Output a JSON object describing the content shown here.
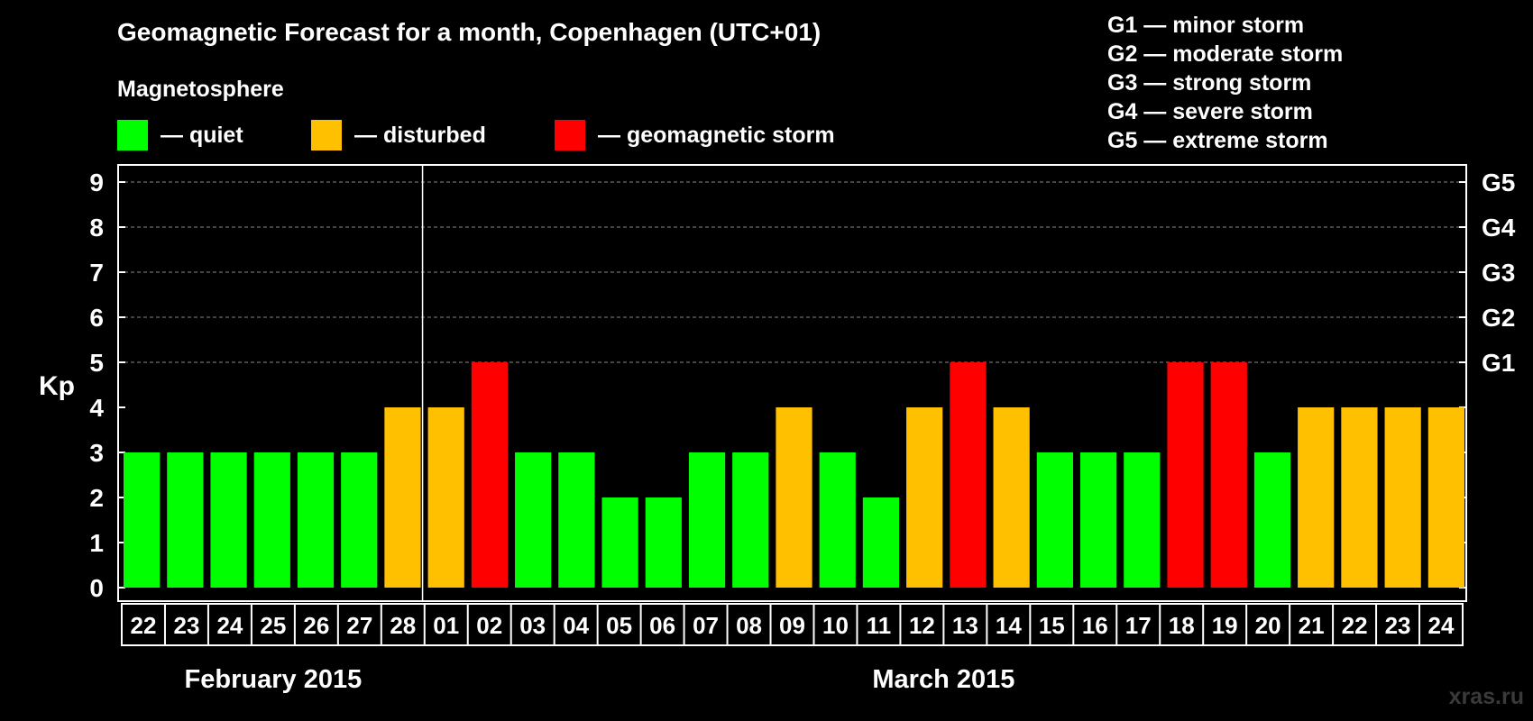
{
  "title": "Geomagnetic Forecast for a month, Copenhagen (UTC+01)",
  "magnetosphere_label": "Magnetosphere",
  "legend": [
    {
      "label": "— quiet",
      "color": "#00ff00"
    },
    {
      "label": "— disturbed",
      "color": "#ffc000"
    },
    {
      "label": "— geomagnetic storm",
      "color": "#ff0000"
    }
  ],
  "storm_levels": [
    "G1 — minor storm",
    "G2 — moderate storm",
    "G3 — strong storm",
    "G4 — severe storm",
    "G5 — extreme storm"
  ],
  "watermark": "xras.ru",
  "colors": {
    "quiet": "#00ff00",
    "disturbed": "#ffc000",
    "storm": "#ff0000",
    "background": "#000000",
    "axis": "#ffffff"
  },
  "chart_data": {
    "type": "bar",
    "ylabel": "Kp",
    "ylim": [
      0,
      9
    ],
    "yticks": [
      0,
      1,
      2,
      3,
      4,
      5,
      6,
      7,
      8,
      9
    ],
    "right_axis_labels": [
      {
        "kp": 5,
        "label": "G1"
      },
      {
        "kp": 6,
        "label": "G2"
      },
      {
        "kp": 7,
        "label": "G3"
      },
      {
        "kp": 8,
        "label": "G4"
      },
      {
        "kp": 9,
        "label": "G5"
      }
    ],
    "categories": [
      "22",
      "23",
      "24",
      "25",
      "26",
      "27",
      "28",
      "01",
      "02",
      "03",
      "04",
      "05",
      "06",
      "07",
      "08",
      "09",
      "10",
      "11",
      "12",
      "13",
      "14",
      "15",
      "16",
      "17",
      "18",
      "19",
      "20",
      "21",
      "22",
      "23",
      "24"
    ],
    "values": [
      3,
      3,
      3,
      3,
      3,
      3,
      4,
      4,
      5,
      3,
      3,
      2,
      2,
      3,
      3,
      4,
      3,
      2,
      4,
      5,
      4,
      3,
      3,
      3,
      5,
      5,
      3,
      4,
      4,
      4,
      4
    ],
    "months": [
      {
        "label": "February 2015",
        "start_index": 0,
        "end_index": 6
      },
      {
        "label": "March 2015",
        "start_index": 7,
        "end_index": 30
      }
    ],
    "grid": true
  }
}
